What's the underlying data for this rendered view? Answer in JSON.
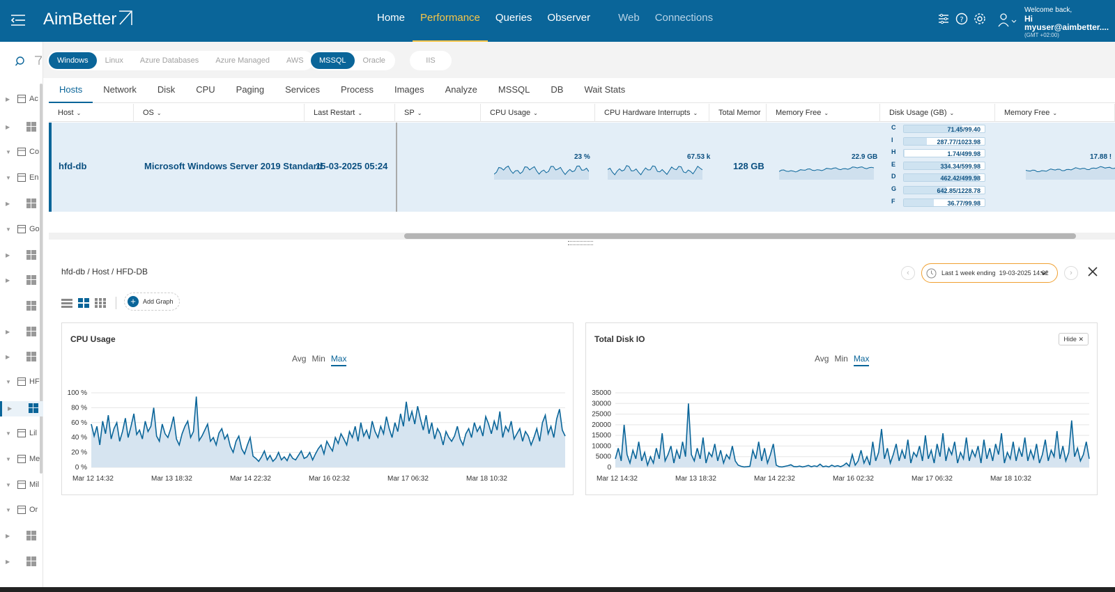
{
  "header": {
    "logo": "AimBetter",
    "nav": [
      {
        "label": "Home",
        "state": "normal"
      },
      {
        "label": "Performance",
        "state": "active"
      },
      {
        "label": "Queries",
        "state": "normal"
      },
      {
        "label": "Observer",
        "state": "normal"
      },
      {
        "label": "Web",
        "state": "dim"
      },
      {
        "label": "Connections",
        "state": "dim"
      }
    ],
    "welcome": "Welcome back,",
    "user": "Hi myuser@aimbetter....",
    "timezone": "(GMT +02:00)",
    "colors": {
      "bar": "#0a6599",
      "active": "#f7c548"
    }
  },
  "sidebar": {
    "groups": [
      {
        "label": "Ac"
      },
      {
        "label": "Co"
      },
      {
        "label": "En"
      },
      {
        "label": "Go"
      },
      {
        "label": "HF"
      },
      {
        "label": "Lil"
      },
      {
        "label": "Me"
      },
      {
        "label": "Mil"
      },
      {
        "label": "Or"
      }
    ]
  },
  "filters": {
    "platforms": [
      "Windows",
      "Linux",
      "Azure Databases",
      "Azure Managed",
      "AWS"
    ],
    "platform_selected": "Windows",
    "engines": [
      "MSSQL",
      "Oracle"
    ],
    "engine_selected": "MSSQL",
    "web": [
      "IIS"
    ]
  },
  "tabs": [
    "Hosts",
    "Network",
    "Disk",
    "CPU",
    "Paging",
    "Services",
    "Process",
    "Images",
    "Analyze",
    "MSSQL",
    "DB",
    "Wait Stats"
  ],
  "tab_selected": "Hosts",
  "table": {
    "columns": [
      "Host",
      "OS",
      "Last Restart",
      "SP",
      "CPU Usage",
      "CPU Hardware Interrupts",
      "Total Memor",
      "Memory Free",
      "Disk Usage (GB)",
      "Memory Free"
    ],
    "row": {
      "host": "hfd-db",
      "os": "Microsoft Windows Server 2019 Standard",
      "last_restart": "15-03-2025 05:24",
      "sp": "",
      "cpu_usage": "23 %",
      "cpu_hw_interrupts": "67.53 k",
      "total_memory": "128 GB",
      "memory_free": "22.9 GB",
      "memory_free_2": "17.88 !",
      "disks": [
        {
          "drive": "C",
          "used": 71.45,
          "total": 99.4,
          "label": "71.45/99.40"
        },
        {
          "drive": "I",
          "used": 287.77,
          "total": 1023.98,
          "label": "287.77/1023.98"
        },
        {
          "drive": "H",
          "used": 1.74,
          "total": 499.98,
          "label": "1.74/499.98"
        },
        {
          "drive": "E",
          "used": 334.34,
          "total": 599.98,
          "label": "334.34/599.98"
        },
        {
          "drive": "D",
          "used": 462.42,
          "total": 499.98,
          "label": "462.42/499.98"
        },
        {
          "drive": "G",
          "used": 642.85,
          "total": 1228.78,
          "label": "642.85/1228.78"
        },
        {
          "drive": "F",
          "used": 36.77,
          "total": 99.98,
          "label": "36.77/99.98"
        }
      ]
    }
  },
  "detail": {
    "breadcrumb": "hfd-db / Host / HFD-DB",
    "time_range": "Last 1 week ending",
    "time_end": "19-03-2025 14:32",
    "add_graph": "Add Graph",
    "hide": "Hide",
    "agg": [
      "Avg",
      "Min",
      "Max"
    ],
    "agg_selected": "Max"
  },
  "chart_data": [
    {
      "type": "area",
      "title": "CPU Usage",
      "ylim": [
        0,
        100
      ],
      "yticks": [
        "0 %",
        "20 %",
        "40 %",
        "60 %",
        "80 %",
        "100 %"
      ],
      "xticks": [
        "Mar 12 14:32",
        "Mar 13 18:32",
        "Mar 14 22:32",
        "Mar 16 02:32",
        "Mar 17 06:32",
        "Mar 18 10:32"
      ],
      "grid": true,
      "values": [
        58,
        42,
        55,
        30,
        62,
        45,
        70,
        38,
        52,
        60,
        35,
        48,
        66,
        40,
        55,
        72,
        44,
        50,
        38,
        62,
        48,
        55,
        80,
        42,
        35,
        58,
        45,
        40,
        52,
        68,
        38,
        30,
        45,
        55,
        62,
        40,
        48,
        95,
        36,
        42,
        50,
        58,
        35,
        40,
        30,
        46,
        52,
        38,
        44,
        28,
        20,
        35,
        42,
        25,
        18,
        30,
        40,
        15,
        12,
        8,
        14,
        22,
        10,
        16,
        8,
        12,
        20,
        10,
        14,
        9,
        18,
        12,
        10,
        16,
        22,
        12,
        14,
        20,
        10,
        18,
        25,
        30,
        18,
        35,
        28,
        22,
        40,
        32,
        45,
        38,
        30,
        48,
        40,
        55,
        35,
        60,
        42,
        50,
        38,
        62,
        48,
        40,
        55,
        45,
        68,
        52,
        40,
        60,
        48,
        72,
        55,
        88,
        62,
        75,
        58,
        82,
        65,
        50,
        70,
        45,
        60,
        38,
        52,
        45,
        30,
        48,
        40,
        35,
        42,
        55,
        38,
        30,
        45,
        52,
        40,
        60,
        48,
        55,
        42,
        68,
        58,
        45,
        62,
        50,
        75,
        40,
        55,
        48,
        62,
        38,
        45,
        52,
        35,
        48,
        42,
        30,
        40,
        52,
        35,
        60,
        70,
        45,
        55,
        40,
        65,
        78,
        50,
        42
      ],
      "color": "#0a6599"
    },
    {
      "type": "area",
      "title": "Total Disk IO",
      "ylim": [
        0,
        35000
      ],
      "yticks": [
        "0",
        "5000",
        "10000",
        "15000",
        "20000",
        "25000",
        "30000",
        "35000"
      ],
      "xticks": [
        "Mar 12 14:32",
        "Mar 13 18:32",
        "Mar 14 22:32",
        "Mar 16 02:32",
        "Mar 17 06:32",
        "Mar 18 10:32"
      ],
      "grid": true,
      "values": [
        4000,
        9000,
        3000,
        20000,
        6000,
        2000,
        8000,
        4000,
        12000,
        3000,
        7000,
        1000,
        5000,
        2000,
        9000,
        4000,
        16000,
        3000,
        6000,
        10000,
        2000,
        8000,
        4000,
        12000,
        5000,
        30000,
        6000,
        3000,
        9000,
        4000,
        14000,
        2000,
        7000,
        5000,
        11000,
        3000,
        8000,
        2000,
        6000,
        4000,
        10000,
        3000,
        1000,
        500,
        200,
        300,
        500,
        8000,
        4000,
        12000,
        3000,
        9000,
        2000,
        6000,
        11000,
        1000,
        300,
        200,
        500,
        800,
        1200,
        400,
        300,
        600,
        200,
        500,
        900,
        300,
        700,
        400,
        1500,
        300,
        600,
        200,
        1000,
        400,
        800,
        300,
        900,
        2000,
        500,
        6000,
        1000,
        3000,
        8000,
        2000,
        5000,
        1000,
        12000,
        3000,
        7000,
        18000,
        4000,
        9000,
        2000,
        6000,
        11000,
        3000,
        8000,
        4000,
        13000,
        2000,
        7000,
        5000,
        10000,
        3000,
        15000,
        4000,
        8000,
        2000,
        11000,
        5000,
        16000,
        3000,
        9000,
        6000,
        12000,
        2000,
        7000,
        4000,
        14000,
        3000,
        8000,
        5000,
        10000,
        2000,
        13000,
        4000,
        9000,
        3000,
        11000,
        6000,
        16000,
        2000,
        7000,
        4000,
        12000,
        3000,
        9000,
        5000,
        14000,
        3000,
        8000,
        4000,
        11000,
        2000,
        6000,
        13000,
        3000,
        8000,
        5000,
        17000,
        4000,
        10000,
        3000,
        7000,
        22000,
        5000,
        9000,
        3000,
        6000,
        12000,
        4000
      ],
      "color": "#0a6599"
    }
  ]
}
